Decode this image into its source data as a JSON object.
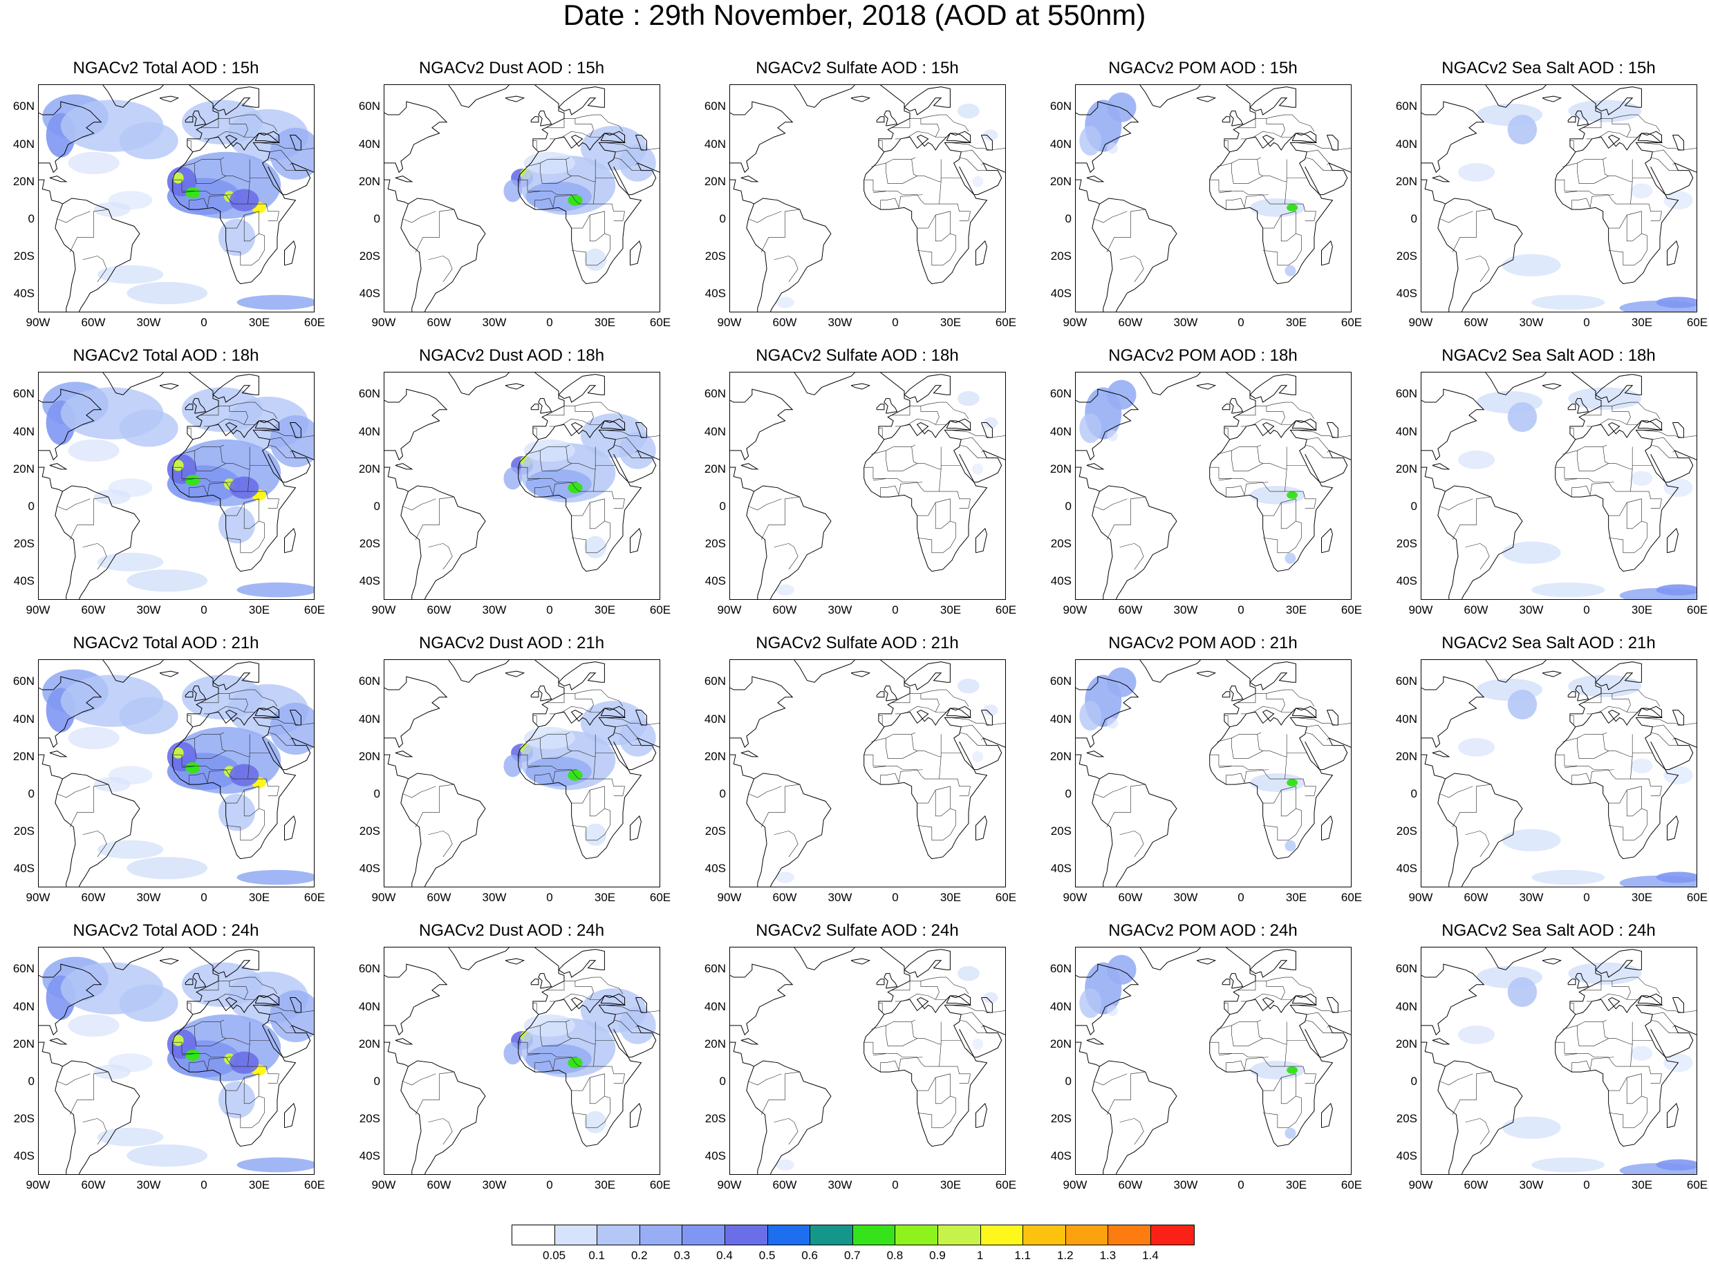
{
  "title": "Date : 29th November, 2018 (AOD at 550nm)",
  "axes": {
    "lat_ticks": [
      "60N",
      "40N",
      "20N",
      "0",
      "20S",
      "40S"
    ],
    "lon_ticks": [
      "90W",
      "60W",
      "30W",
      "0",
      "30E",
      "60E"
    ],
    "lat_range": [
      -50,
      72
    ],
    "lon_range": [
      -90,
      60
    ],
    "mid_column_lon_ticks": [
      "90W",
      "60W",
      "30W",
      "0",
      "30E",
      "60E"
    ]
  },
  "species": [
    {
      "key": "total",
      "label": "Total AOD"
    },
    {
      "key": "dust",
      "label": "Dust AOD"
    },
    {
      "key": "sulfate",
      "label": "Sulfate AOD"
    },
    {
      "key": "pom",
      "label": "POM AOD"
    },
    {
      "key": "seasalt",
      "label": "Sea Salt AOD"
    }
  ],
  "panels": [
    {
      "title": "NGACv2 Total AOD : 15h",
      "species": "total",
      "hour": "15h"
    },
    {
      "title": "NGACv2 Dust AOD : 15h",
      "species": "dust",
      "hour": "15h"
    },
    {
      "title": "NGACv2 Sulfate AOD : 15h",
      "species": "sulfate",
      "hour": "15h"
    },
    {
      "title": "NGACv2 POM AOD : 15h",
      "species": "pom",
      "hour": "15h"
    },
    {
      "title": "NGACv2 Sea Salt AOD : 15h",
      "species": "seasalt",
      "hour": "15h"
    },
    {
      "title": "NGACv2 Total AOD : 18h",
      "species": "total",
      "hour": "18h"
    },
    {
      "title": "NGACv2 Dust AOD : 18h",
      "species": "dust",
      "hour": "18h"
    },
    {
      "title": "NGACv2 Sulfate AOD : 18h",
      "species": "sulfate",
      "hour": "18h"
    },
    {
      "title": "NGACv2 POM AOD : 18h",
      "species": "pom",
      "hour": "18h"
    },
    {
      "title": "NGACv2 Sea Salt AOD : 18h",
      "species": "seasalt",
      "hour": "18h"
    },
    {
      "title": "NGACv2 Total AOD : 21h",
      "species": "total",
      "hour": "21h"
    },
    {
      "title": "NGACv2 Dust AOD : 21h",
      "species": "dust",
      "hour": "21h"
    },
    {
      "title": "NGACv2 Sulfate AOD : 21h",
      "species": "sulfate",
      "hour": "21h"
    },
    {
      "title": "NGACv2 POM AOD : 21h",
      "species": "pom",
      "hour": "21h"
    },
    {
      "title": "NGACv2 Sea Salt AOD : 21h",
      "species": "seasalt",
      "hour": "21h"
    },
    {
      "title": "NGACv2 Total AOD : 24h",
      "species": "total",
      "hour": "24h"
    },
    {
      "title": "NGACv2 Dust AOD : 24h",
      "species": "dust",
      "hour": "24h"
    },
    {
      "title": "NGACv2 Sulfate AOD : 24h",
      "species": "sulfate",
      "hour": "24h"
    },
    {
      "title": "NGACv2 POM AOD : 24h",
      "species": "pom",
      "hour": "24h"
    },
    {
      "title": "NGACv2 Sea Salt  AOD : 24h",
      "species": "seasalt",
      "hour": "24h"
    }
  ],
  "colorbar": {
    "labels": [
      "0.05",
      "0.1",
      "0.2",
      "0.3",
      "0.4",
      "0.5",
      "0.6",
      "0.7",
      "0.8",
      "0.9",
      "1",
      "1.1",
      "1.2",
      "1.3",
      "1.4"
    ],
    "colors": [
      "#ffffff",
      "#d7e3fb",
      "#b4c7f6",
      "#97aef4",
      "#7f97f3",
      "#6a6fe8",
      "#1e6ff0",
      "#15968a",
      "#36e31b",
      "#8ef21c",
      "#c7f24a",
      "#fdf71b",
      "#fdc20e",
      "#fca20f",
      "#fc7c0f",
      "#fa2216"
    ]
  }
}
